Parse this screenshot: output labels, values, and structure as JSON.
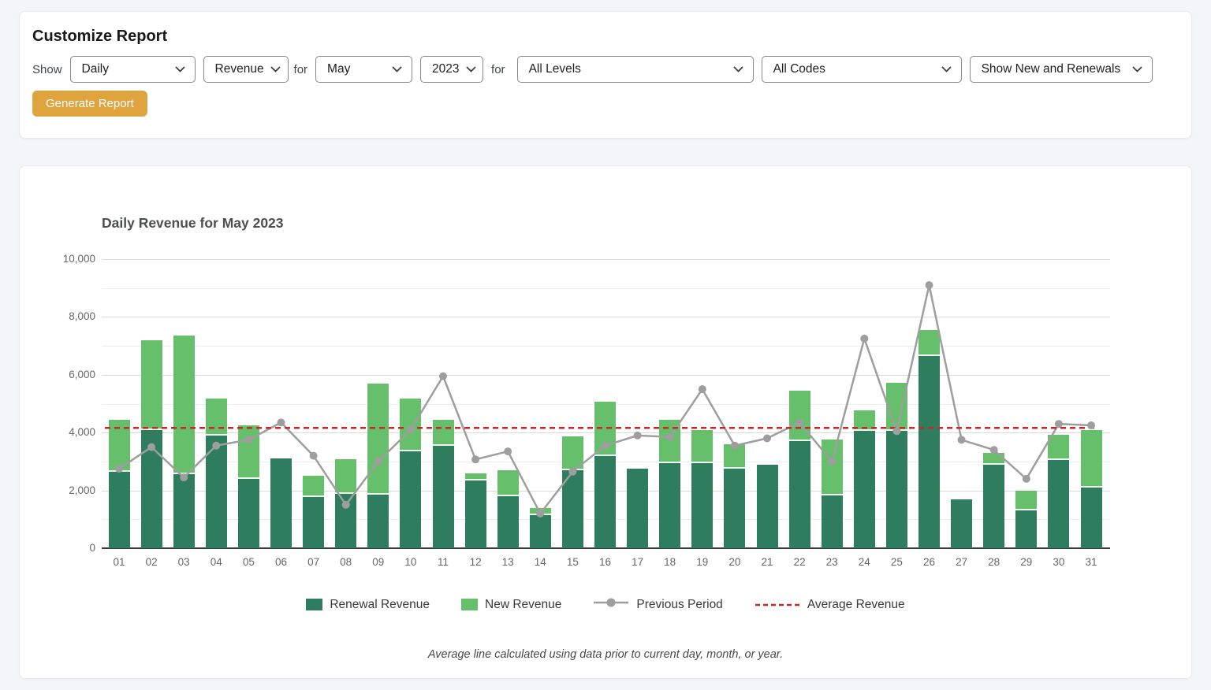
{
  "customize_panel": {
    "title": "Customize Report",
    "show_label": "Show",
    "for_label_1": "for",
    "for_label_2": "for",
    "selects": {
      "interval": {
        "value": "Daily"
      },
      "metric": {
        "value": "Revenue"
      },
      "month": {
        "value": "May"
      },
      "year": {
        "value": "2023"
      },
      "levels": {
        "value": "All Levels"
      },
      "codes": {
        "value": "All Codes"
      },
      "new_renewals": {
        "value": "Show New and Renewals"
      }
    },
    "generate_button": "Generate Report"
  },
  "chart_data": {
    "type": "bar",
    "subtype": "stacked bars with overlaid line and dashed average line",
    "title": "Daily Revenue for May 2023",
    "categories": [
      "01",
      "02",
      "03",
      "04",
      "05",
      "06",
      "07",
      "08",
      "09",
      "10",
      "11",
      "12",
      "13",
      "14",
      "15",
      "16",
      "17",
      "18",
      "19",
      "20",
      "21",
      "22",
      "23",
      "24",
      "25",
      "26",
      "27",
      "28",
      "29",
      "30",
      "31"
    ],
    "series": [
      {
        "name": "Renewal Revenue",
        "type": "bar-stack",
        "color": "#2e7d5e",
        "values": [
          2650,
          4100,
          2550,
          3900,
          2400,
          3100,
          1780,
          1880,
          1850,
          3350,
          3550,
          2350,
          1800,
          1150,
          2700,
          3200,
          2750,
          2950,
          2950,
          2750,
          2900,
          3700,
          1820,
          4050,
          4070,
          6650,
          1680,
          2900,
          1300,
          3050,
          2100
        ]
      },
      {
        "name": "New Revenue",
        "type": "bar-stack",
        "color": "#66bf6a",
        "values": [
          1800,
          3100,
          4800,
          1280,
          1850,
          0,
          720,
          1190,
          3850,
          1830,
          900,
          250,
          900,
          250,
          1170,
          1880,
          0,
          1500,
          1150,
          850,
          0,
          1750,
          1950,
          730,
          1660,
          900,
          0,
          400,
          700,
          880,
          2000
        ]
      },
      {
        "name": "Previous Period",
        "type": "line",
        "color": "#9e9e9e",
        "values": [
          2750,
          3500,
          2450,
          3550,
          3750,
          4350,
          3200,
          1500,
          3000,
          4100,
          5950,
          3070,
          3350,
          1200,
          2650,
          3550,
          3900,
          3850,
          5500,
          3550,
          3800,
          4350,
          3000,
          7250,
          4050,
          9100,
          3750,
          3400,
          2400,
          4300,
          4250
        ]
      },
      {
        "name": "Average Revenue",
        "type": "dashed-line",
        "color": "#c62828",
        "value": 4160
      }
    ],
    "xlabel": "",
    "ylabel": "",
    "ylim": [
      0,
      10000
    ],
    "y_ticks": [
      0,
      2000,
      4000,
      6000,
      8000,
      10000
    ],
    "grid": "horizontal major gridlines every 2,000 with minor gridlines every 1,000",
    "legend_position": "bottom",
    "footnote": "Average line calculated using data prior to current day, month, or year."
  }
}
